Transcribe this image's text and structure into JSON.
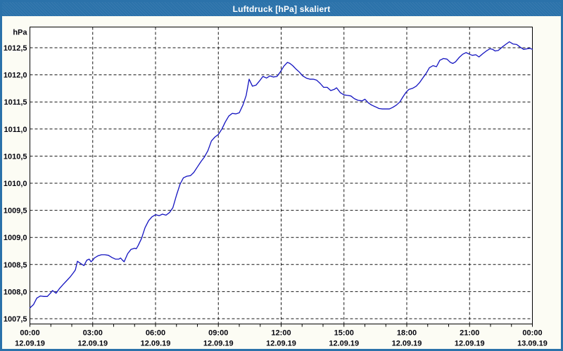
{
  "window": {
    "title": "Luftdruck [hPa] skaliert"
  },
  "colors": {
    "titlebar": "#2b72aa",
    "window_border": "#2b72aa",
    "window_background": "#fcfcf4",
    "plot_background": "#ffffff",
    "plot_border": "#000000",
    "grid": "#141414",
    "line": "#1313c0",
    "label_text": "#06060f",
    "title_text": "#ffffff"
  },
  "chart_data": {
    "type": "line",
    "title": "Luftdruck [hPa] skaliert",
    "ylabel": "hPa",
    "ylim": [
      1007.5,
      1012.5
    ],
    "grid_style": "dashed",
    "legend": null,
    "y_ticks": [
      {
        "v": 1012.5,
        "label": "1012,5"
      },
      {
        "v": 1012.0,
        "label": "1012,0"
      },
      {
        "v": 1011.5,
        "label": "1011,5"
      },
      {
        "v": 1011.0,
        "label": "1011,0"
      },
      {
        "v": 1010.5,
        "label": "1010,5"
      },
      {
        "v": 1010.0,
        "label": "1010,0"
      },
      {
        "v": 1009.5,
        "label": "1009,5"
      },
      {
        "v": 1009.0,
        "label": "1009,0"
      },
      {
        "v": 1008.5,
        "label": "1008,5"
      },
      {
        "v": 1008.0,
        "label": "1008,0"
      },
      {
        "v": 1007.5,
        "label": "1007,5"
      }
    ],
    "x_range_hours": [
      0,
      24
    ],
    "x_minor_tick_every_hours": 1,
    "x_major_ticks": [
      {
        "h": 0,
        "time": "00:00",
        "date": "12.09.19"
      },
      {
        "h": 3,
        "time": "03:00",
        "date": "12.09.19"
      },
      {
        "h": 6,
        "time": "06:00",
        "date": "12.09.19"
      },
      {
        "h": 9,
        "time": "09:00",
        "date": "12.09.19"
      },
      {
        "h": 12,
        "time": "12:00",
        "date": "12.09.19"
      },
      {
        "h": 15,
        "time": "15:00",
        "date": "12.09.19"
      },
      {
        "h": 18,
        "time": "18:00",
        "date": "12.09.19"
      },
      {
        "h": 21,
        "time": "21:00",
        "date": "12.09.19"
      },
      {
        "h": 24,
        "time": "00:00",
        "date": "13.09.19"
      }
    ],
    "series": [
      {
        "name": "Luftdruck",
        "unit": "hPa",
        "points": [
          [
            0.0,
            1007.7
          ],
          [
            0.17,
            1007.76
          ],
          [
            0.33,
            1007.88
          ],
          [
            0.5,
            1007.92
          ],
          [
            0.67,
            1007.91
          ],
          [
            0.83,
            1007.91
          ],
          [
            1.0,
            1007.98
          ],
          [
            1.08,
            1008.02
          ],
          [
            1.25,
            1007.97
          ],
          [
            1.42,
            1008.06
          ],
          [
            1.58,
            1008.13
          ],
          [
            1.75,
            1008.2
          ],
          [
            1.92,
            1008.27
          ],
          [
            2.08,
            1008.35
          ],
          [
            2.17,
            1008.4
          ],
          [
            2.27,
            1008.56
          ],
          [
            2.42,
            1008.52
          ],
          [
            2.58,
            1008.48
          ],
          [
            2.72,
            1008.58
          ],
          [
            2.83,
            1008.6
          ],
          [
            2.92,
            1008.55
          ],
          [
            3.0,
            1008.58
          ],
          [
            3.08,
            1008.62
          ],
          [
            3.25,
            1008.66
          ],
          [
            3.42,
            1008.68
          ],
          [
            3.58,
            1008.68
          ],
          [
            3.75,
            1008.67
          ],
          [
            3.92,
            1008.63
          ],
          [
            4.08,
            1008.6
          ],
          [
            4.25,
            1008.6
          ],
          [
            4.33,
            1008.62
          ],
          [
            4.42,
            1008.58
          ],
          [
            4.5,
            1008.55
          ],
          [
            4.67,
            1008.7
          ],
          [
            4.83,
            1008.78
          ],
          [
            5.0,
            1008.8
          ],
          [
            5.08,
            1008.79
          ],
          [
            5.17,
            1008.85
          ],
          [
            5.33,
            1008.98
          ],
          [
            5.5,
            1009.18
          ],
          [
            5.67,
            1009.31
          ],
          [
            5.83,
            1009.38
          ],
          [
            6.0,
            1009.42
          ],
          [
            6.17,
            1009.4
          ],
          [
            6.33,
            1009.43
          ],
          [
            6.5,
            1009.41
          ],
          [
            6.67,
            1009.46
          ],
          [
            6.83,
            1009.55
          ],
          [
            7.0,
            1009.78
          ],
          [
            7.17,
            1009.98
          ],
          [
            7.33,
            1010.1
          ],
          [
            7.5,
            1010.13
          ],
          [
            7.67,
            1010.14
          ],
          [
            7.83,
            1010.2
          ],
          [
            8.0,
            1010.3
          ],
          [
            8.17,
            1010.4
          ],
          [
            8.33,
            1010.48
          ],
          [
            8.5,
            1010.6
          ],
          [
            8.67,
            1010.78
          ],
          [
            8.83,
            1010.85
          ],
          [
            9.0,
            1010.9
          ],
          [
            9.17,
            1011.0
          ],
          [
            9.33,
            1011.13
          ],
          [
            9.5,
            1011.24
          ],
          [
            9.67,
            1011.29
          ],
          [
            9.83,
            1011.28
          ],
          [
            10.0,
            1011.3
          ],
          [
            10.17,
            1011.44
          ],
          [
            10.33,
            1011.62
          ],
          [
            10.47,
            1011.92
          ],
          [
            10.63,
            1011.79
          ],
          [
            10.8,
            1011.81
          ],
          [
            10.97,
            1011.89
          ],
          [
            11.13,
            1011.97
          ],
          [
            11.3,
            1011.94
          ],
          [
            11.47,
            1011.98
          ],
          [
            11.63,
            1011.96
          ],
          [
            11.8,
            1011.97
          ],
          [
            11.97,
            1012.06
          ],
          [
            12.13,
            1012.16
          ],
          [
            12.3,
            1012.23
          ],
          [
            12.42,
            1012.21
          ],
          [
            12.55,
            1012.17
          ],
          [
            12.7,
            1012.11
          ],
          [
            12.87,
            1012.05
          ],
          [
            13.03,
            1011.98
          ],
          [
            13.2,
            1011.94
          ],
          [
            13.37,
            1011.92
          ],
          [
            13.53,
            1011.92
          ],
          [
            13.7,
            1011.9
          ],
          [
            13.87,
            1011.84
          ],
          [
            14.03,
            1011.77
          ],
          [
            14.2,
            1011.77
          ],
          [
            14.37,
            1011.71
          ],
          [
            14.53,
            1011.73
          ],
          [
            14.65,
            1011.76
          ],
          [
            14.83,
            1011.67
          ],
          [
            15.0,
            1011.63
          ],
          [
            15.17,
            1011.62
          ],
          [
            15.33,
            1011.61
          ],
          [
            15.5,
            1011.56
          ],
          [
            15.67,
            1011.53
          ],
          [
            15.87,
            1011.52
          ],
          [
            16.0,
            1011.55
          ],
          [
            16.17,
            1011.48
          ],
          [
            16.33,
            1011.44
          ],
          [
            16.5,
            1011.41
          ],
          [
            16.67,
            1011.38
          ],
          [
            16.83,
            1011.37
          ],
          [
            17.0,
            1011.37
          ],
          [
            17.17,
            1011.37
          ],
          [
            17.33,
            1011.4
          ],
          [
            17.5,
            1011.44
          ],
          [
            17.67,
            1011.5
          ],
          [
            17.83,
            1011.6
          ],
          [
            17.97,
            1011.68
          ],
          [
            18.1,
            1011.73
          ],
          [
            18.27,
            1011.75
          ],
          [
            18.45,
            1011.79
          ],
          [
            18.62,
            1011.86
          ],
          [
            18.78,
            1011.95
          ],
          [
            18.93,
            1012.03
          ],
          [
            19.08,
            1012.13
          ],
          [
            19.25,
            1012.17
          ],
          [
            19.42,
            1012.15
          ],
          [
            19.58,
            1012.27
          ],
          [
            19.75,
            1012.3
          ],
          [
            19.92,
            1012.29
          ],
          [
            20.08,
            1012.23
          ],
          [
            20.2,
            1012.21
          ],
          [
            20.33,
            1012.24
          ],
          [
            20.5,
            1012.32
          ],
          [
            20.67,
            1012.38
          ],
          [
            20.83,
            1012.41
          ],
          [
            21.0,
            1012.38
          ],
          [
            21.13,
            1012.36
          ],
          [
            21.3,
            1012.37
          ],
          [
            21.45,
            1012.33
          ],
          [
            21.63,
            1012.39
          ],
          [
            21.8,
            1012.44
          ],
          [
            21.97,
            1012.48
          ],
          [
            22.1,
            1012.47
          ],
          [
            22.22,
            1012.44
          ],
          [
            22.37,
            1012.45
          ],
          [
            22.55,
            1012.51
          ],
          [
            22.72,
            1012.56
          ],
          [
            22.9,
            1012.61
          ],
          [
            23.07,
            1012.57
          ],
          [
            23.25,
            1012.56
          ],
          [
            23.42,
            1012.51
          ],
          [
            23.58,
            1012.47
          ],
          [
            23.75,
            1012.48
          ],
          [
            23.88,
            1012.49
          ],
          [
            24.0,
            1012.47
          ]
        ]
      }
    ]
  }
}
